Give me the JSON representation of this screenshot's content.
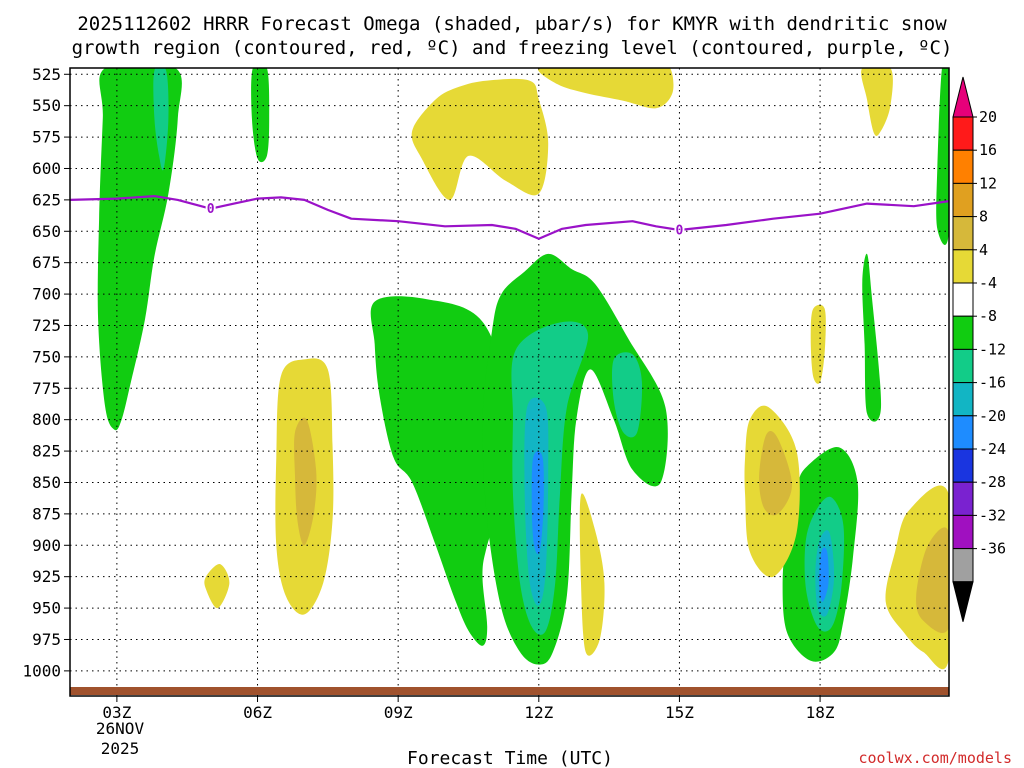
{
  "chart_data": {
    "type": "contour",
    "title_line1": "2025112602 HRRR Forecast Omega (shaded, μbar/s) for KMYR with dendritic snow",
    "title_line2": "growth region (contoured, red, ºC) and freezing level (contoured, purple, ºC)",
    "xlabel": "Forecast Time (UTC)",
    "credit": "coolwx.com/models",
    "x_range_hours": [
      2.0,
      20.75
    ],
    "y_range_hpa": [
      520,
      1020
    ],
    "x_ticks": [
      {
        "hour": 3,
        "label": "03Z"
      },
      {
        "hour": 6,
        "label": "06Z"
      },
      {
        "hour": 9,
        "label": "09Z"
      },
      {
        "hour": 12,
        "label": "12Z"
      },
      {
        "hour": 15,
        "label": "15Z"
      },
      {
        "hour": 18,
        "label": "18Z"
      }
    ],
    "date_label_day": "26NOV",
    "date_label_year": "2025",
    "y_ticks": [
      525,
      550,
      575,
      600,
      625,
      650,
      675,
      700,
      725,
      750,
      775,
      800,
      825,
      850,
      875,
      900,
      925,
      950,
      975,
      1000
    ],
    "colorbar": {
      "tick_labels": [
        "20",
        "16",
        "12",
        "8",
        "4",
        "-4",
        "-8",
        "-12",
        "-16",
        "-20",
        "-24",
        "-28",
        "-32",
        "-36"
      ],
      "colors": [
        "#ff1a1a",
        "#ff8000",
        "#e0a020",
        "#d6b83a",
        "#e6d936",
        "#ffffff",
        "#11cc11",
        "#12cc88",
        "#12b5c4",
        "#1e8cff",
        "#1a35e0",
        "#7a22d0",
        "#a010c0",
        "#a0a0a0"
      ],
      "top_arrow_color": "#e6007a",
      "bottom_arrow_color": "#000000"
    },
    "freezing_level": {
      "label": "0",
      "color": "#9a12c8",
      "hours": [
        2.0,
        3.0,
        3.8,
        4.3,
        5.0,
        5.5,
        6.0,
        6.5,
        7.0,
        7.5,
        8.0,
        9.0,
        10.0,
        11.0,
        11.5,
        12.0,
        12.5,
        13.0,
        14.0,
        14.5,
        15.0,
        16.0,
        17.0,
        18.0,
        19.0,
        20.0,
        20.75
      ],
      "pressure": [
        625,
        624,
        622,
        625,
        632,
        628,
        624,
        623,
        625,
        633,
        640,
        642,
        646,
        645,
        648,
        656,
        648,
        645,
        642,
        646,
        649,
        645,
        640,
        636,
        628,
        630,
        626
      ]
    },
    "contours": [
      {
        "level": -8,
        "color": "#11cc11",
        "points": [
          [
            2.75,
            520
          ],
          [
            4.25,
            520
          ],
          [
            4.3,
            560
          ],
          [
            4.1,
            620
          ],
          [
            3.8,
            670
          ],
          [
            3.6,
            720
          ],
          [
            3.3,
            770
          ],
          [
            3.1,
            800
          ],
          [
            2.95,
            808
          ],
          [
            2.75,
            790
          ],
          [
            2.6,
            720
          ],
          [
            2.62,
            640
          ],
          [
            2.7,
            560
          ]
        ]
      },
      {
        "level": -12,
        "color": "#12cc88",
        "points": [
          [
            3.8,
            522
          ],
          [
            4.05,
            522
          ],
          [
            4.1,
            560
          ],
          [
            4.0,
            600
          ],
          [
            3.9,
            590
          ],
          [
            3.8,
            560
          ]
        ]
      },
      {
        "level": -8,
        "color": "#11cc11",
        "points": [
          [
            5.9,
            520
          ],
          [
            6.2,
            520
          ],
          [
            6.25,
            560
          ],
          [
            6.2,
            590
          ],
          [
            6.0,
            592
          ],
          [
            5.88,
            560
          ]
        ]
      },
      {
        "level": -8,
        "color": "#11cc11",
        "points": [
          [
            8.5,
            706
          ],
          [
            9.6,
            704
          ],
          [
            10.8,
            722
          ],
          [
            11.4,
            790
          ],
          [
            11.3,
            850
          ],
          [
            10.9,
            900
          ],
          [
            10.8,
            925
          ],
          [
            10.9,
            965
          ],
          [
            10.8,
            980
          ],
          [
            10.5,
            968
          ],
          [
            10.2,
            942
          ],
          [
            9.8,
            900
          ],
          [
            9.3,
            850
          ],
          [
            8.9,
            830
          ],
          [
            8.6,
            780
          ],
          [
            8.5,
            740
          ]
        ]
      },
      {
        "level": -8,
        "color": "#11cc11",
        "points": [
          [
            11.2,
            700
          ],
          [
            11.7,
            682
          ],
          [
            12.2,
            668
          ],
          [
            12.7,
            680
          ],
          [
            13.2,
            692
          ],
          [
            13.9,
            735
          ],
          [
            14.7,
            790
          ],
          [
            14.6,
            850
          ],
          [
            14.0,
            840
          ],
          [
            13.6,
            800
          ],
          [
            13.1,
            760
          ],
          [
            12.8,
            800
          ],
          [
            12.7,
            860
          ],
          [
            12.6,
            940
          ],
          [
            12.3,
            985
          ],
          [
            12.0,
            995
          ],
          [
            11.6,
            985
          ],
          [
            11.2,
            950
          ],
          [
            10.9,
            880
          ],
          [
            10.8,
            800
          ],
          [
            11.0,
            730
          ]
        ]
      },
      {
        "level": -12,
        "color": "#12cc88",
        "points": [
          [
            11.5,
            745
          ],
          [
            12.4,
            723
          ],
          [
            13.05,
            732
          ],
          [
            12.6,
            790
          ],
          [
            12.45,
            860
          ],
          [
            12.35,
            930
          ],
          [
            12.15,
            968
          ],
          [
            11.85,
            965
          ],
          [
            11.6,
            930
          ],
          [
            11.45,
            860
          ],
          [
            11.45,
            800
          ]
        ]
      },
      {
        "level": -12,
        "color": "#12cc88",
        "points": [
          [
            13.6,
            752
          ],
          [
            14.0,
            748
          ],
          [
            14.2,
            770
          ],
          [
            14.1,
            810
          ],
          [
            13.8,
            810
          ],
          [
            13.6,
            785
          ]
        ]
      },
      {
        "level": -16,
        "color": "#12b5c4",
        "points": [
          [
            11.75,
            790
          ],
          [
            12.15,
            790
          ],
          [
            12.2,
            840
          ],
          [
            12.15,
            920
          ],
          [
            12.0,
            948
          ],
          [
            11.8,
            928
          ],
          [
            11.7,
            860
          ]
        ]
      },
      {
        "level": -20,
        "color": "#1e8cff",
        "points": [
          [
            11.88,
            830
          ],
          [
            12.08,
            830
          ],
          [
            12.1,
            870
          ],
          [
            12.02,
            905
          ],
          [
            11.9,
            900
          ],
          [
            11.85,
            870
          ]
        ]
      },
      {
        "level": -8,
        "color": "#11cc11",
        "points": [
          [
            17.7,
            838
          ],
          [
            18.4,
            822
          ],
          [
            18.8,
            850
          ],
          [
            18.7,
            910
          ],
          [
            18.5,
            960
          ],
          [
            18.3,
            985
          ],
          [
            17.8,
            992
          ],
          [
            17.3,
            970
          ],
          [
            17.2,
            930
          ],
          [
            17.3,
            890
          ],
          [
            17.5,
            855
          ]
        ]
      },
      {
        "level": -12,
        "color": "#12cc88",
        "points": [
          [
            17.95,
            870
          ],
          [
            18.25,
            862
          ],
          [
            18.5,
            885
          ],
          [
            18.45,
            935
          ],
          [
            18.25,
            965
          ],
          [
            17.95,
            965
          ],
          [
            17.7,
            935
          ],
          [
            17.7,
            895
          ]
        ]
      },
      {
        "level": -16,
        "color": "#12b5c4",
        "points": [
          [
            18.0,
            895
          ],
          [
            18.2,
            890
          ],
          [
            18.3,
            925
          ],
          [
            18.15,
            955
          ],
          [
            17.95,
            950
          ],
          [
            17.9,
            920
          ]
        ]
      },
      {
        "level": -20,
        "color": "#1e8cff",
        "points": [
          [
            18.03,
            905
          ],
          [
            18.15,
            905
          ],
          [
            18.18,
            930
          ],
          [
            18.05,
            945
          ],
          [
            17.98,
            930
          ]
        ]
      },
      {
        "level": -8,
        "color": "#11cc11",
        "points": [
          [
            19.0,
            668
          ],
          [
            19.1,
            700
          ],
          [
            19.3,
            790
          ],
          [
            19.0,
            795
          ],
          [
            18.95,
            740
          ],
          [
            18.9,
            690
          ]
        ]
      },
      {
        "level": -8,
        "color": "#11cc11",
        "points": [
          [
            20.6,
            520
          ],
          [
            20.75,
            520
          ],
          [
            20.75,
            650
          ],
          [
            20.5,
            648
          ],
          [
            20.5,
            600
          ]
        ]
      },
      {
        "level": 4,
        "color": "#e6d936",
        "points": [
          [
            10.9,
            530
          ],
          [
            11.8,
            530
          ],
          [
            12.0,
            545
          ],
          [
            12.2,
            580
          ],
          [
            12.0,
            620
          ],
          [
            11.3,
            610
          ],
          [
            10.5,
            590
          ],
          [
            10.1,
            625
          ],
          [
            9.5,
            592
          ],
          [
            9.3,
            570
          ],
          [
            9.8,
            545
          ],
          [
            10.3,
            535
          ]
        ]
      },
      {
        "level": 4,
        "color": "#e6d936",
        "points": [
          [
            12.0,
            520
          ],
          [
            13.0,
            520
          ],
          [
            14.5,
            520
          ],
          [
            14.8,
            520
          ],
          [
            14.85,
            540
          ],
          [
            14.5,
            552
          ],
          [
            13.8,
            546
          ],
          [
            13.0,
            540
          ],
          [
            12.4,
            533
          ]
        ]
      },
      {
        "level": 4,
        "color": "#e6d936",
        "points": [
          [
            6.5,
            765
          ],
          [
            7.0,
            752
          ],
          [
            7.5,
            760
          ],
          [
            7.6,
            820
          ],
          [
            7.6,
            880
          ],
          [
            7.4,
            930
          ],
          [
            7.0,
            955
          ],
          [
            6.6,
            940
          ],
          [
            6.4,
            900
          ],
          [
            6.4,
            830
          ]
        ]
      },
      {
        "level": 8,
        "color": "#d6b83a",
        "points": [
          [
            6.8,
            810
          ],
          [
            7.05,
            800
          ],
          [
            7.25,
            840
          ],
          [
            7.2,
            875
          ],
          [
            7.0,
            900
          ],
          [
            6.85,
            880
          ],
          [
            6.8,
            845
          ]
        ]
      },
      {
        "level": 4,
        "color": "#e6d936",
        "points": [
          [
            4.9,
            925
          ],
          [
            5.2,
            915
          ],
          [
            5.4,
            930
          ],
          [
            5.15,
            950
          ],
          [
            4.9,
            935
          ]
        ]
      },
      {
        "level": 4,
        "color": "#e6d936",
        "points": [
          [
            12.9,
            860
          ],
          [
            13.2,
            888
          ],
          [
            13.4,
            930
          ],
          [
            13.3,
            975
          ],
          [
            13.0,
            985
          ],
          [
            12.9,
            930
          ]
        ]
      },
      {
        "level": 4,
        "color": "#e6d936",
        "points": [
          [
            16.5,
            800
          ],
          [
            16.9,
            790
          ],
          [
            17.5,
            825
          ],
          [
            17.5,
            890
          ],
          [
            17.0,
            925
          ],
          [
            16.5,
            905
          ],
          [
            16.4,
            860
          ],
          [
            16.4,
            830
          ]
        ]
      },
      {
        "level": 8,
        "color": "#d6b83a",
        "points": [
          [
            16.85,
            812
          ],
          [
            17.1,
            815
          ],
          [
            17.4,
            852
          ],
          [
            17.1,
            875
          ],
          [
            16.8,
            870
          ],
          [
            16.7,
            845
          ]
        ]
      },
      {
        "level": 4,
        "color": "#e6d936",
        "points": [
          [
            17.85,
            712
          ],
          [
            18.1,
            712
          ],
          [
            18.1,
            745
          ],
          [
            18.0,
            770
          ],
          [
            17.85,
            765
          ],
          [
            17.8,
            735
          ]
        ]
      },
      {
        "level": 4,
        "color": "#e6d936",
        "points": [
          [
            18.9,
            520
          ],
          [
            19.5,
            520
          ],
          [
            19.5,
            550
          ],
          [
            19.3,
            570
          ],
          [
            19.15,
            572
          ],
          [
            19.0,
            545
          ]
        ]
      },
      {
        "level": 4,
        "color": "#e6d936",
        "points": [
          [
            19.9,
            872
          ],
          [
            20.75,
            860
          ],
          [
            20.75,
            990
          ],
          [
            20.2,
            985
          ],
          [
            19.8,
            970
          ],
          [
            19.4,
            945
          ],
          [
            19.6,
            905
          ]
        ]
      },
      {
        "level": 8,
        "color": "#d6b83a",
        "points": [
          [
            20.3,
            900
          ],
          [
            20.75,
            890
          ],
          [
            20.75,
            965
          ],
          [
            20.2,
            960
          ],
          [
            20.05,
            940
          ]
        ]
      }
    ]
  }
}
